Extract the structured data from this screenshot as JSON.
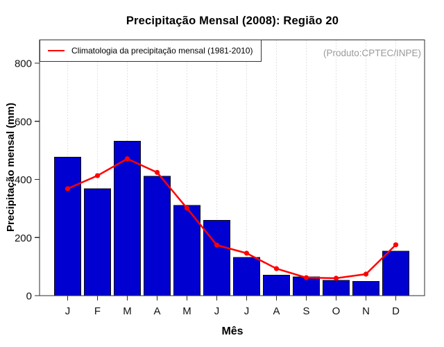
{
  "title": "Precipitação Mensal (2008): Região 20",
  "watermark": "(Produto:CPTEC/INPE)",
  "legend": {
    "label": "Climatologia da precipitação mensal (1981-2010)",
    "line_color": "#ff0000"
  },
  "chart_data": {
    "type": "bar",
    "title": "Precipitação Mensal (2008): Região 20",
    "xlabel": "Mês",
    "ylabel": "Precipitação mensal (mm)",
    "categories": [
      "J",
      "F",
      "M",
      "A",
      "M",
      "J",
      "J",
      "A",
      "S",
      "O",
      "N",
      "D"
    ],
    "series": [
      {
        "name": "Precipitação mensal 2008",
        "type": "bar",
        "color": "#0000d0",
        "values": [
          477,
          368,
          531,
          411,
          311,
          259,
          131,
          70,
          64,
          52,
          49,
          153
        ]
      },
      {
        "name": "Climatologia da precipitação mensal (1981-2010)",
        "type": "line",
        "color": "#ff0000",
        "values": [
          368,
          413,
          471,
          424,
          301,
          174,
          146,
          93,
          62,
          60,
          74,
          175
        ]
      }
    ],
    "ylim": [
      0,
      880
    ],
    "yticks": [
      0,
      200,
      400,
      600,
      800
    ],
    "grid": "vertical-dotted",
    "legend_position": "top-left",
    "colors": {
      "bar_fill": "#0000d0",
      "bar_border": "#0a0a0a",
      "line": "#ff0000",
      "gridline": "#d8d8d8",
      "axis_box": "#2b2b2b",
      "watermark": "#9a9a9a"
    }
  }
}
